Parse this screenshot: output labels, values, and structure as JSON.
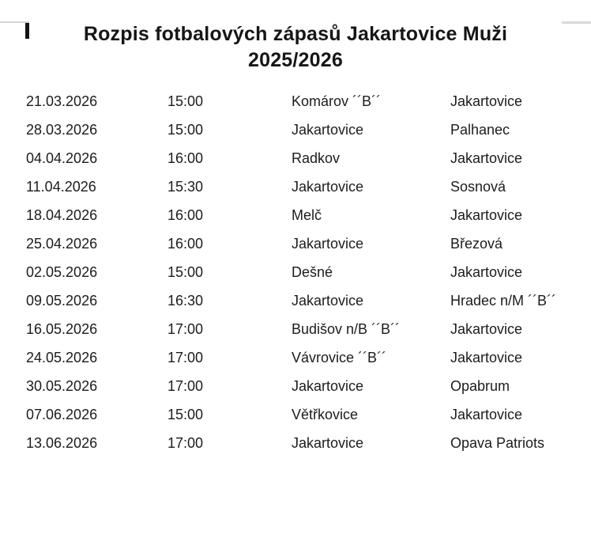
{
  "page": {
    "background_color": "#ffffff",
    "text_color": "#1c1c1c"
  },
  "decorations": {
    "top_left_line_color": "#d4d4d4",
    "top_right_line_color": "#d9d9d9",
    "caret_color": "#141414"
  },
  "title": {
    "line1": "Rozpis fotbalových zápasů Jakartovice Muži",
    "line2": "2025/2026"
  },
  "schedule": {
    "rows": [
      {
        "date": "21.03.2026",
        "time": "15:00",
        "home": "Komárov ´´B´´",
        "away": "Jakartovice"
      },
      {
        "date": "28.03.2026",
        "time": "15:00",
        "home": "Jakartovice",
        "away": "Palhanec"
      },
      {
        "date": "04.04.2026",
        "time": "16:00",
        "home": "Radkov",
        "away": "Jakartovice"
      },
      {
        "date": "11.04.2026",
        "time": "15:30",
        "home": "Jakartovice",
        "away": "Sosnová"
      },
      {
        "date": "18.04.2026",
        "time": "16:00",
        "home": "Melč",
        "away": "Jakartovice"
      },
      {
        "date": "25.04.2026",
        "time": "16:00",
        "home": "Jakartovice",
        "away": "Březová"
      },
      {
        "date": "02.05.2026",
        "time": "15:00",
        "home": "Dešné",
        "away": "Jakartovice"
      },
      {
        "date": "09.05.2026",
        "time": "16:30",
        "home": "Jakartovice",
        "away": "Hradec n/M ´´B´´"
      },
      {
        "date": "16.05.2026",
        "time": "17:00",
        "home": "Budišov n/B ´´B´´",
        "away": "Jakartovice"
      },
      {
        "date": "24.05.2026",
        "time": "17:00",
        "home": "Vávrovice ´´B´´",
        "away": "Jakartovice"
      },
      {
        "date": "30.05.2026",
        "time": "17:00",
        "home": "Jakartovice",
        "away": "Opabrum"
      },
      {
        "date": "07.06.2026",
        "time": "15:00",
        "home": "Větřkovice",
        "away": "Jakartovice"
      },
      {
        "date": "13.06.2026",
        "time": "17:00",
        "home": "Jakartovice",
        "away": "Opava Patriots"
      }
    ]
  }
}
